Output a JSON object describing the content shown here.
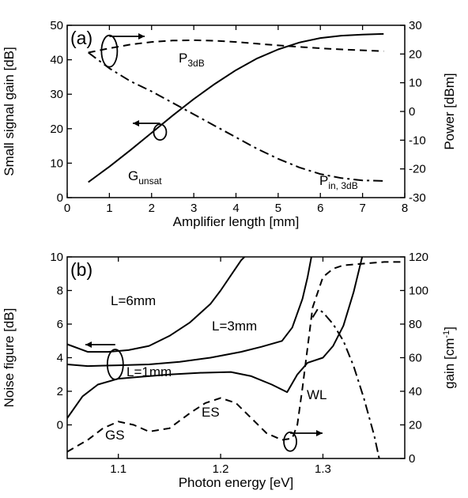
{
  "chart_data": [
    {
      "type": "line",
      "panel_label": "(a)",
      "xlabel": "Amplifier length [mm]",
      "ylabel": "Small signal gain [dB]",
      "y2label": "Power [dBm]",
      "xlim": [
        0,
        8
      ],
      "ylim": [
        0,
        50
      ],
      "y2lim": [
        -30,
        30
      ],
      "xticks": [
        "0",
        "1",
        "2",
        "3",
        "4",
        "5",
        "6",
        "7",
        "8"
      ],
      "yticks": [
        "0",
        "10",
        "20",
        "30",
        "40",
        "50"
      ],
      "y2ticks": [
        "-30",
        "-20",
        "-10",
        "0",
        "10",
        "20",
        "30"
      ],
      "grid": false,
      "series": [
        {
          "name": "G_unsat",
          "label_main": "G",
          "label_sub": "unsat",
          "axis": "left",
          "style": "solid",
          "x": [
            0.5,
            1.0,
            1.5,
            2.0,
            2.5,
            3.0,
            3.5,
            4.0,
            4.5,
            5.0,
            5.5,
            6.0,
            6.5,
            7.0,
            7.5
          ],
          "y": [
            4.5,
            9.0,
            13.8,
            18.8,
            23.8,
            28.6,
            33.0,
            37.0,
            40.4,
            43.0,
            45.0,
            46.3,
            47.0,
            47.3,
            47.5
          ]
        },
        {
          "name": "P_3dB",
          "label_main": "P",
          "label_sub": "3dB",
          "axis": "right",
          "style": "dashed",
          "x": [
            0.5,
            1.0,
            1.5,
            2.0,
            2.5,
            3.0,
            3.5,
            4.0,
            4.5,
            5.0,
            5.5,
            6.0,
            6.5,
            7.0,
            7.5
          ],
          "y": [
            20.5,
            22.0,
            23.3,
            24.2,
            24.7,
            24.8,
            24.6,
            24.2,
            23.6,
            23.0,
            22.5,
            22.0,
            21.6,
            21.3,
            21.0
          ]
        },
        {
          "name": "P_in,3dB",
          "label_main": "P",
          "label_sub": "in, 3dB",
          "axis": "right",
          "style": "dashdot",
          "x": [
            0.5,
            1.0,
            1.5,
            2.0,
            2.5,
            3.0,
            3.5,
            4.0,
            4.5,
            5.0,
            5.5,
            6.0,
            6.5,
            7.0,
            7.5
          ],
          "y": [
            20.5,
            15.0,
            10.5,
            7.0,
            3.0,
            -1.0,
            -5.0,
            -9.0,
            -13.0,
            -16.5,
            -19.5,
            -21.8,
            -23.2,
            -24.0,
            -24.2
          ]
        }
      ]
    },
    {
      "type": "line",
      "panel_label": "(b)",
      "xlabel": "Photon energy [eV]",
      "ylabel": "Noise figure [dB]",
      "y2label": "gain [cm",
      "y2label_sup": "-1",
      "y2label_tail": "]",
      "xlim": [
        1.05,
        1.38
      ],
      "ylim": [
        -2,
        10
      ],
      "y2lim": [
        0,
        120
      ],
      "xticks": [
        "1.1",
        "1.2",
        "1.3"
      ],
      "yticks": [
        "0",
        "2",
        "4",
        "6",
        "8",
        "10"
      ],
      "y2ticks": [
        "0",
        "20",
        "40",
        "60",
        "80",
        "100",
        "120"
      ],
      "grid": false,
      "annotations": [
        "L=6mm",
        "L=3mm",
        "L=1mm",
        "GS",
        "ES",
        "WL"
      ],
      "series": [
        {
          "name": "L=6mm",
          "axis": "left",
          "style": "solid",
          "x": [
            1.05,
            1.07,
            1.09,
            1.11,
            1.13,
            1.15,
            1.17,
            1.19,
            1.2,
            1.21,
            1.22,
            1.23
          ],
          "y": [
            4.8,
            4.35,
            4.35,
            4.45,
            4.7,
            5.3,
            6.1,
            7.2,
            8.0,
            8.9,
            9.8,
            10.4
          ]
        },
        {
          "name": "L=3mm",
          "axis": "left",
          "style": "solid",
          "x": [
            1.05,
            1.07,
            1.1,
            1.13,
            1.16,
            1.19,
            1.22,
            1.24,
            1.26,
            1.27,
            1.28,
            1.285,
            1.29
          ],
          "y": [
            3.6,
            3.5,
            3.55,
            3.6,
            3.75,
            4.0,
            4.35,
            4.65,
            5.0,
            5.8,
            7.5,
            8.8,
            10.4
          ]
        },
        {
          "name": "L=1mm",
          "axis": "left",
          "style": "solid",
          "x": [
            1.05,
            1.065,
            1.08,
            1.1,
            1.12,
            1.15,
            1.18,
            1.21,
            1.23,
            1.25,
            1.265,
            1.275,
            1.285,
            1.3,
            1.31,
            1.32,
            1.33,
            1.34
          ],
          "y": [
            0.4,
            1.7,
            2.4,
            2.75,
            2.85,
            3.0,
            3.1,
            3.15,
            2.9,
            2.4,
            1.95,
            3.0,
            3.7,
            4.0,
            4.7,
            5.9,
            7.9,
            10.4
          ]
        },
        {
          "name": "gain_ground_state",
          "axis": "right",
          "style": "dashed",
          "x": [
            1.05,
            1.07,
            1.085,
            1.1,
            1.115,
            1.13,
            1.15,
            1.17,
            1.185,
            1.2,
            1.215,
            1.23,
            1.245,
            1.26,
            1.27,
            1.275,
            1.28,
            1.29,
            1.3,
            1.31,
            1.32,
            1.34,
            1.36,
            1.38
          ],
          "y": [
            4,
            11,
            18,
            22,
            20,
            16,
            18,
            27,
            33,
            36,
            33,
            24,
            15,
            11,
            12,
            20,
            42,
            90,
            108,
            113,
            115,
            116,
            117,
            117
          ]
        },
        {
          "name": "gain_wetting_layer",
          "axis": "right",
          "style": "dashdot",
          "x": [
            1.29,
            1.295,
            1.3,
            1.31,
            1.32,
            1.33,
            1.34,
            1.35,
            1.355
          ],
          "y": [
            84,
            89,
            87,
            80,
            70,
            55,
            36,
            14,
            0
          ]
        }
      ]
    }
  ]
}
